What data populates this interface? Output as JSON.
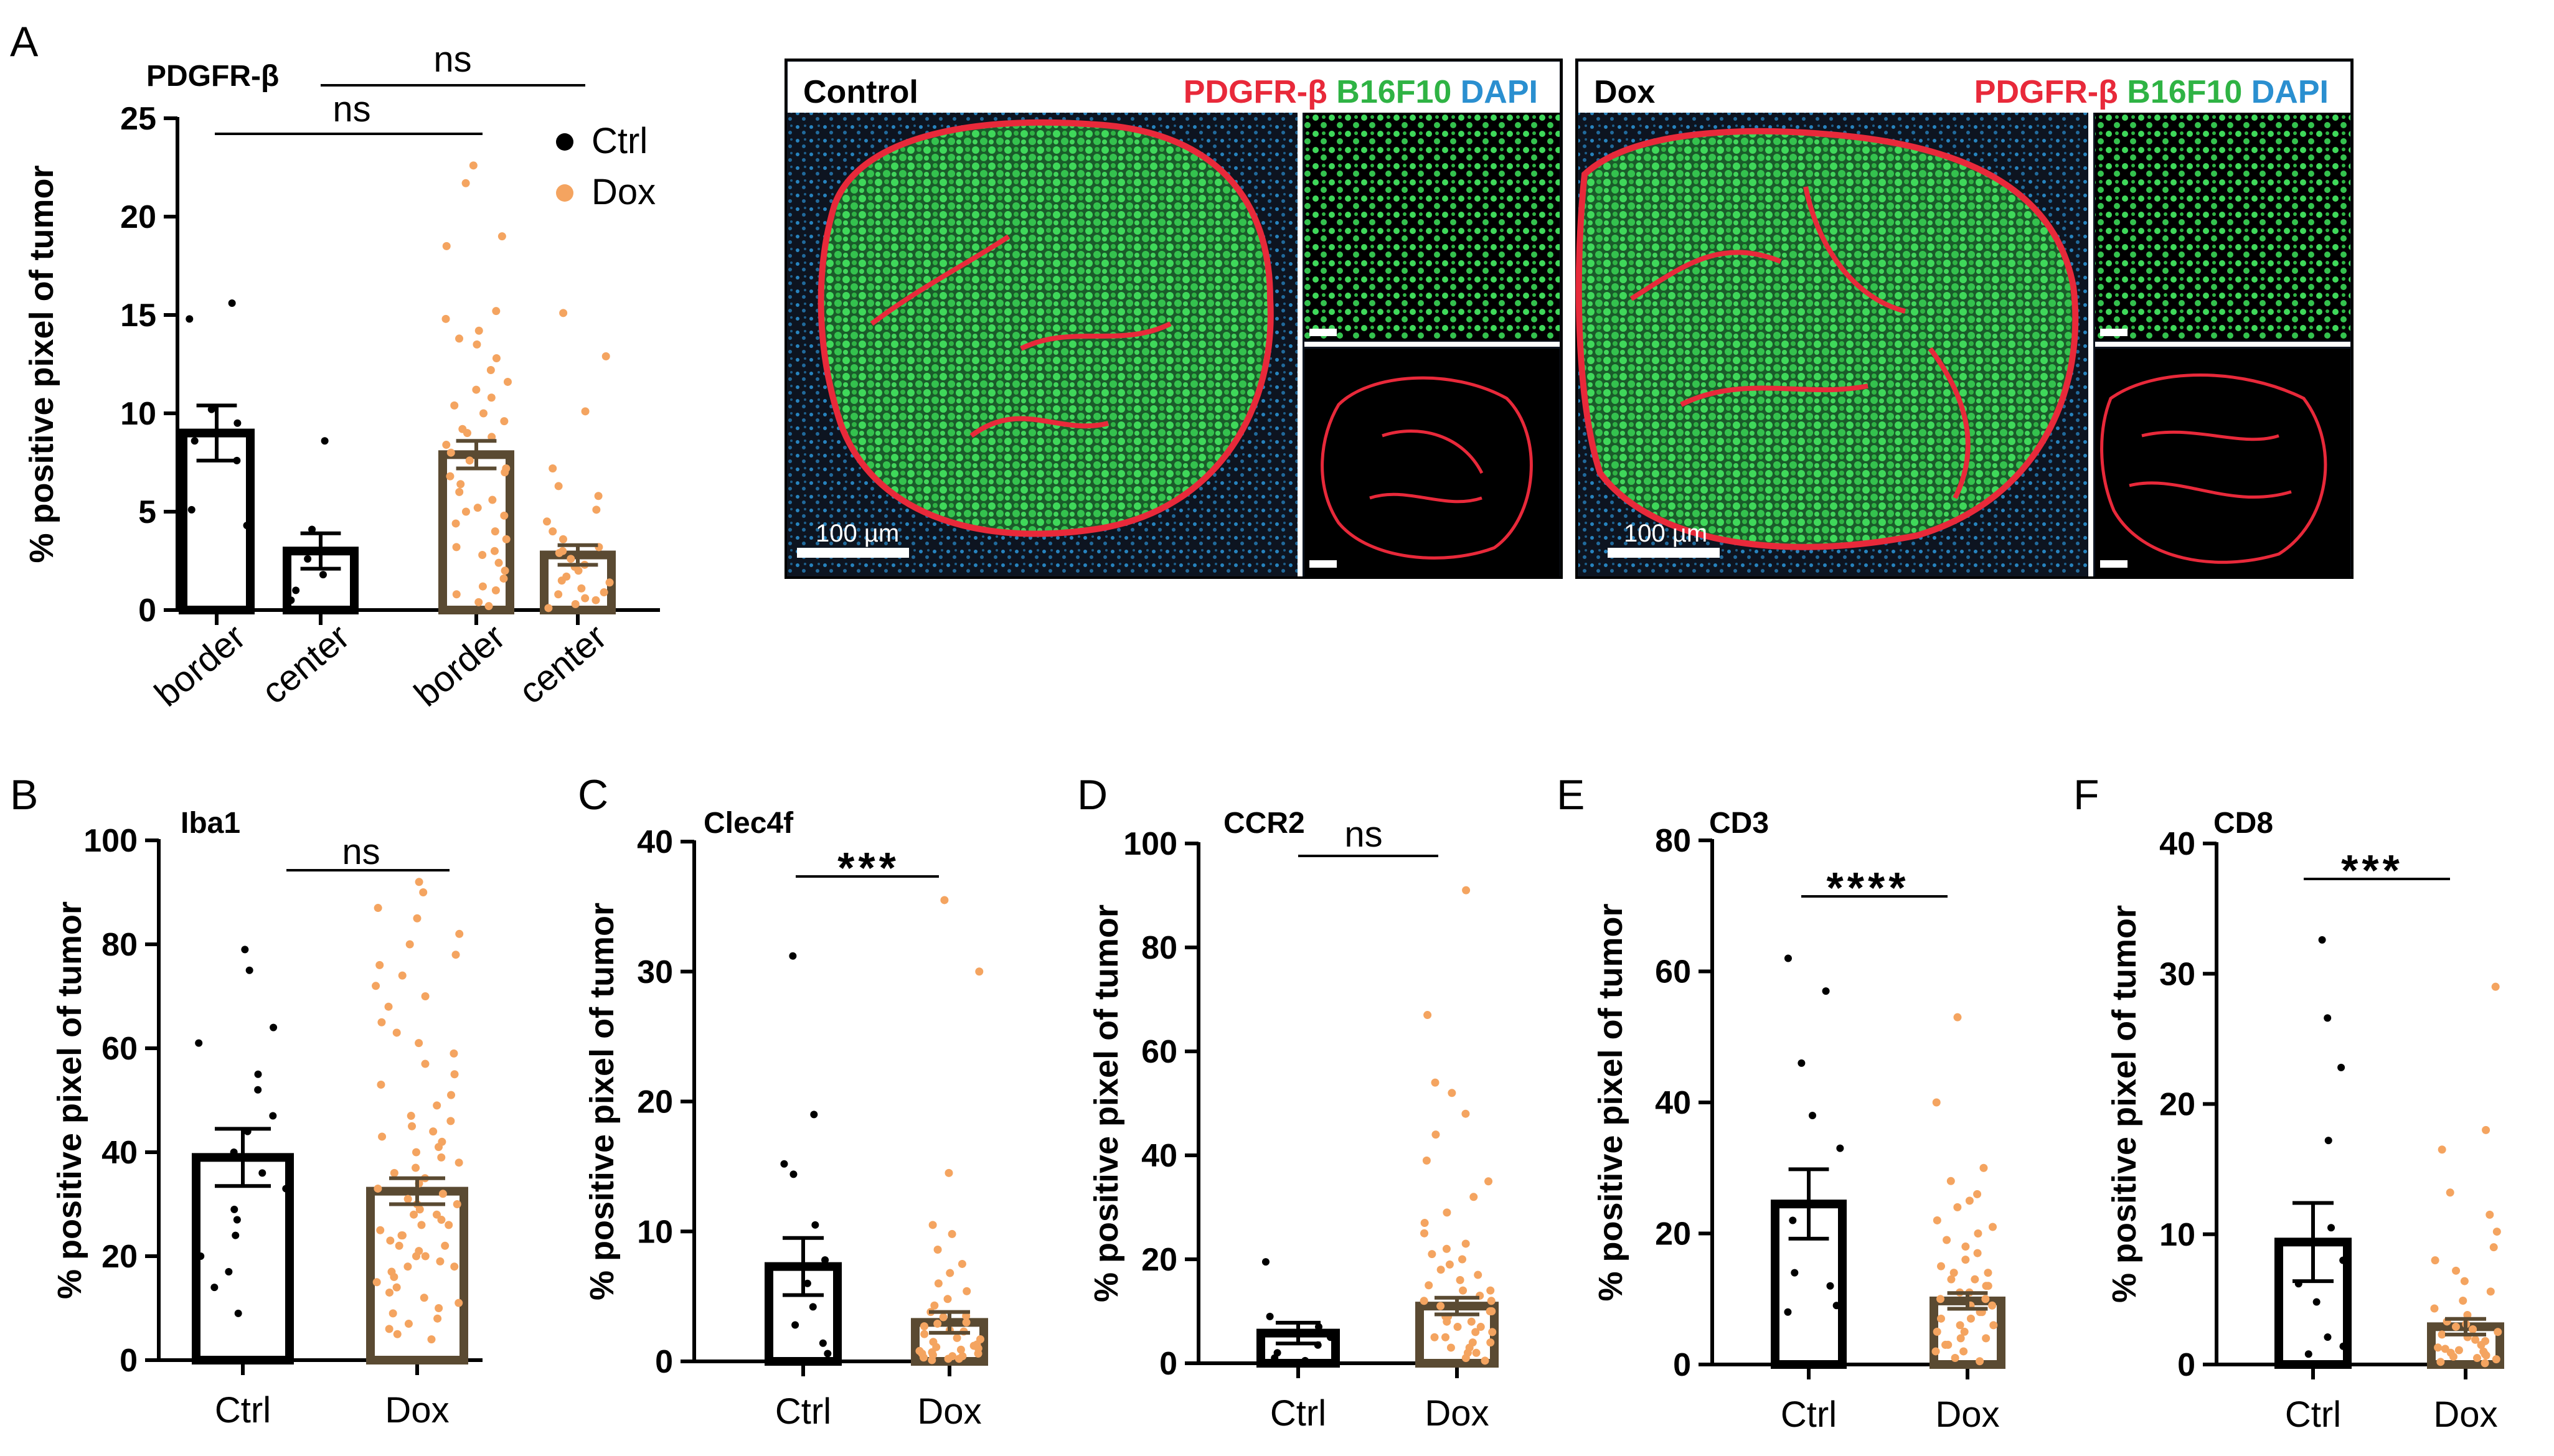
{
  "panel_letters": {
    "A": "A",
    "B": "B",
    "C": "C",
    "D": "D",
    "E": "E",
    "F": "F"
  },
  "colors": {
    "ctrl": "#000000",
    "dox": "#f4a460",
    "dox_bar": "#5a4a32",
    "pdgfr": "#e8293a",
    "b16f10": "#2fb344",
    "dapi": "#2a8fd0",
    "micro_bg": "#0d1420"
  },
  "legend": {
    "ctrl": "Ctrl",
    "dox": "Dox"
  },
  "micrographs": {
    "control": {
      "condition": "Control",
      "stain1": "PDGFR-β",
      "stain2": "B16F10",
      "stain3": "DAPI",
      "scale": "100 µm"
    },
    "dox": {
      "condition": "Dox",
      "stain1": "PDGFR-β",
      "stain2": "B16F10",
      "stain3": "DAPI",
      "scale": "100 µm"
    }
  },
  "chart_data": [
    {
      "panel": "A",
      "type": "bar",
      "title": "PDGFR-β",
      "ylabel": "% positive pixel of tumor",
      "ylim": [
        0,
        25
      ],
      "yticks": [
        "0",
        "5",
        "10",
        "15",
        "20",
        "25"
      ],
      "categories": [
        "border",
        "center",
        "border",
        "center"
      ],
      "groups": [
        "Ctrl",
        "Ctrl",
        "Dox",
        "Dox"
      ],
      "means": [
        9.0,
        3.0,
        7.9,
        2.8
      ],
      "sem": [
        1.4,
        0.9,
        0.7,
        0.5
      ],
      "points": [
        [
          15.6,
          14.8,
          10.2,
          9.5,
          8.6,
          7.6,
          5.1,
          4.3
        ],
        [
          8.6,
          4.1,
          2.6,
          1.8,
          1.0,
          0.5
        ],
        [
          22.6,
          21.7,
          19.0,
          18.5,
          15.2,
          14.8,
          14.2,
          13.8,
          13.5,
          12.8,
          12.2,
          11.6,
          11.2,
          10.8,
          10.4,
          10.0,
          9.6,
          9.2,
          8.8,
          8.4,
          8.0,
          7.6,
          7.2,
          6.8,
          6.4,
          6.0,
          5.6,
          5.2,
          4.8,
          4.4,
          4.0,
          3.6,
          3.2,
          2.8,
          2.4,
          2.0,
          1.6,
          1.2,
          0.8,
          0.4,
          0.2,
          9.0,
          7.0,
          5.0,
          3.0,
          1.0
        ],
        [
          15.1,
          12.9,
          10.1,
          7.2,
          6.3,
          5.8,
          5.1,
          4.5,
          4.0,
          3.6,
          3.2,
          2.9,
          2.6,
          2.3,
          2.0,
          1.7,
          1.4,
          1.1,
          0.8,
          0.5,
          0.3,
          0.1,
          3.0,
          2.2,
          1.5,
          0.9,
          0.6
        ]
      ],
      "comparisons": [
        {
          "from": 0,
          "to": 2,
          "label": "ns"
        },
        {
          "from": 1,
          "to": 3,
          "label": "ns"
        }
      ]
    },
    {
      "panel": "B",
      "type": "bar",
      "title": "Iba1",
      "ylabel": "% positive pixel of tumor",
      "ylim": [
        0,
        100
      ],
      "yticks": [
        "0",
        "20",
        "40",
        "60",
        "80",
        "100"
      ],
      "categories": [
        "Ctrl",
        "Dox"
      ],
      "groups": [
        "Ctrl",
        "Dox"
      ],
      "means": [
        39.0,
        32.5
      ],
      "sem": [
        5.5,
        2.5
      ],
      "points": [
        [
          79,
          75,
          64,
          61,
          55,
          52,
          47,
          44,
          40,
          36,
          33,
          29,
          27,
          24,
          20,
          17,
          14,
          9
        ],
        [
          92,
          90,
          87,
          85,
          82,
          80,
          78,
          76,
          74,
          72,
          70,
          68,
          65,
          63,
          61,
          59,
          57,
          55,
          53,
          51,
          49,
          47,
          45,
          43,
          41,
          39,
          37,
          35,
          33,
          31,
          30,
          29,
          28,
          27,
          26,
          25,
          24,
          23,
          22,
          21,
          20,
          19,
          18,
          17,
          16,
          15,
          14,
          13,
          12,
          11,
          10,
          9,
          8,
          7,
          6,
          5,
          4,
          34,
          32,
          30,
          28,
          26,
          24,
          36,
          38,
          40,
          42,
          44,
          46,
          22,
          20,
          18
        ]
      ],
      "comparisons": [
        {
          "from": 0,
          "to": 1,
          "label": "ns"
        }
      ]
    },
    {
      "panel": "C",
      "type": "bar",
      "title": "Clec4f",
      "ylabel": "% positive pixel of tumor",
      "ylim": [
        0,
        40
      ],
      "yticks": [
        "0",
        "10",
        "20",
        "30",
        "40"
      ],
      "categories": [
        "Ctrl",
        "Dox"
      ],
      "groups": [
        "Ctrl",
        "Dox"
      ],
      "means": [
        7.3,
        3.0
      ],
      "sem": [
        2.2,
        0.8
      ],
      "points": [
        [
          31.2,
          19.0,
          15.2,
          14.4,
          10.5,
          7.8,
          6.0,
          4.2,
          2.8,
          1.4,
          0.6
        ],
        [
          35.5,
          30.0,
          14.5,
          10.5,
          9.8,
          8.6,
          7.5,
          6.8,
          6.0,
          5.4,
          4.8,
          4.3,
          3.8,
          3.4,
          3.0,
          2.7,
          2.4,
          2.1,
          1.8,
          1.5,
          1.2,
          1.0,
          0.8,
          0.6,
          0.4,
          0.3,
          0.2,
          0.1,
          0.5,
          1.1,
          1.7,
          2.3,
          2.9,
          3.5,
          0.7,
          0.9,
          1.3,
          0.2,
          0.4,
          0.6
        ]
      ],
      "comparisons": [
        {
          "from": 0,
          "to": 1,
          "label": "***"
        }
      ]
    },
    {
      "panel": "D",
      "type": "bar",
      "title": "CCR2",
      "ylabel": "% positive pixel of tumor",
      "ylim": [
        0,
        100
      ],
      "yticks": [
        "0",
        "20",
        "40",
        "60",
        "80",
        "100"
      ],
      "categories": [
        "Ctrl",
        "Dox"
      ],
      "groups": [
        "Ctrl",
        "Dox"
      ],
      "means": [
        5.8,
        11.0
      ],
      "sem": [
        2.0,
        1.6
      ],
      "points": [
        [
          19.5,
          9.0,
          7.0,
          5.0,
          3.5,
          2.0,
          1.0,
          0.5
        ],
        [
          91,
          67,
          54,
          52,
          48,
          44,
          39,
          35,
          32,
          29,
          27,
          25,
          23,
          21,
          19,
          17,
          15,
          14,
          13,
          12,
          11,
          10,
          9,
          8,
          7,
          6,
          5,
          4,
          3,
          2,
          1,
          0.5,
          12,
          10,
          8,
          6,
          4,
          2,
          16,
          14,
          18,
          20,
          22,
          3,
          5,
          7,
          9
        ]
      ],
      "comparisons": [
        {
          "from": 0,
          "to": 1,
          "label": "ns"
        }
      ]
    },
    {
      "panel": "E",
      "type": "bar",
      "title": "CD3",
      "ylabel": "% positive pixel of tumor",
      "ylim": [
        0,
        80
      ],
      "yticks": [
        "0",
        "20",
        "40",
        "60",
        "80"
      ],
      "categories": [
        "Ctrl",
        "Dox"
      ],
      "groups": [
        "Ctrl",
        "Dox"
      ],
      "means": [
        24.5,
        9.7
      ],
      "sem": [
        5.3,
        1.2
      ],
      "points": [
        [
          62,
          57,
          46,
          38,
          33,
          22,
          14,
          12,
          9,
          8
        ],
        [
          53,
          40,
          30,
          28,
          26,
          24,
          22,
          20,
          18,
          17,
          16,
          15,
          14,
          13,
          12,
          11,
          10,
          9,
          8,
          7,
          6,
          5,
          4,
          3,
          2,
          1,
          0.5,
          25,
          21,
          19,
          13,
          11,
          9,
          7,
          5,
          3,
          14,
          12,
          10,
          8,
          6,
          4,
          2
        ]
      ],
      "comparisons": [
        {
          "from": 0,
          "to": 1,
          "label": "****"
        }
      ]
    },
    {
      "panel": "F",
      "type": "bar",
      "title": "CD8",
      "ylabel": "% positive pixel of tumor",
      "ylim": [
        0,
        40
      ],
      "yticks": [
        "0",
        "10",
        "20",
        "30",
        "40"
      ],
      "categories": [
        "Ctrl",
        "Dox"
      ],
      "groups": [
        "Ctrl",
        "Dox"
      ],
      "means": [
        9.4,
        2.9
      ],
      "sem": [
        3.0,
        0.6
      ],
      "points": [
        [
          32.6,
          26.6,
          22.8,
          17.2,
          10.5,
          8.0,
          6.2,
          4.8,
          2.1,
          1.4,
          0.8
        ],
        [
          29.0,
          18.0,
          16.5,
          13.2,
          11.5,
          10.2,
          9.0,
          8.0,
          7.2,
          6.4,
          5.6,
          4.9,
          4.3,
          3.8,
          3.3,
          2.9,
          2.5,
          2.1,
          1.8,
          1.5,
          1.2,
          1.0,
          0.8,
          0.6,
          0.4,
          0.2,
          0.1,
          3.1,
          2.7,
          2.3,
          1.9,
          0.5,
          0.7,
          0.9,
          1.1,
          1.3
        ]
      ],
      "comparisons": [
        {
          "from": 0,
          "to": 1,
          "label": "***"
        }
      ]
    }
  ]
}
